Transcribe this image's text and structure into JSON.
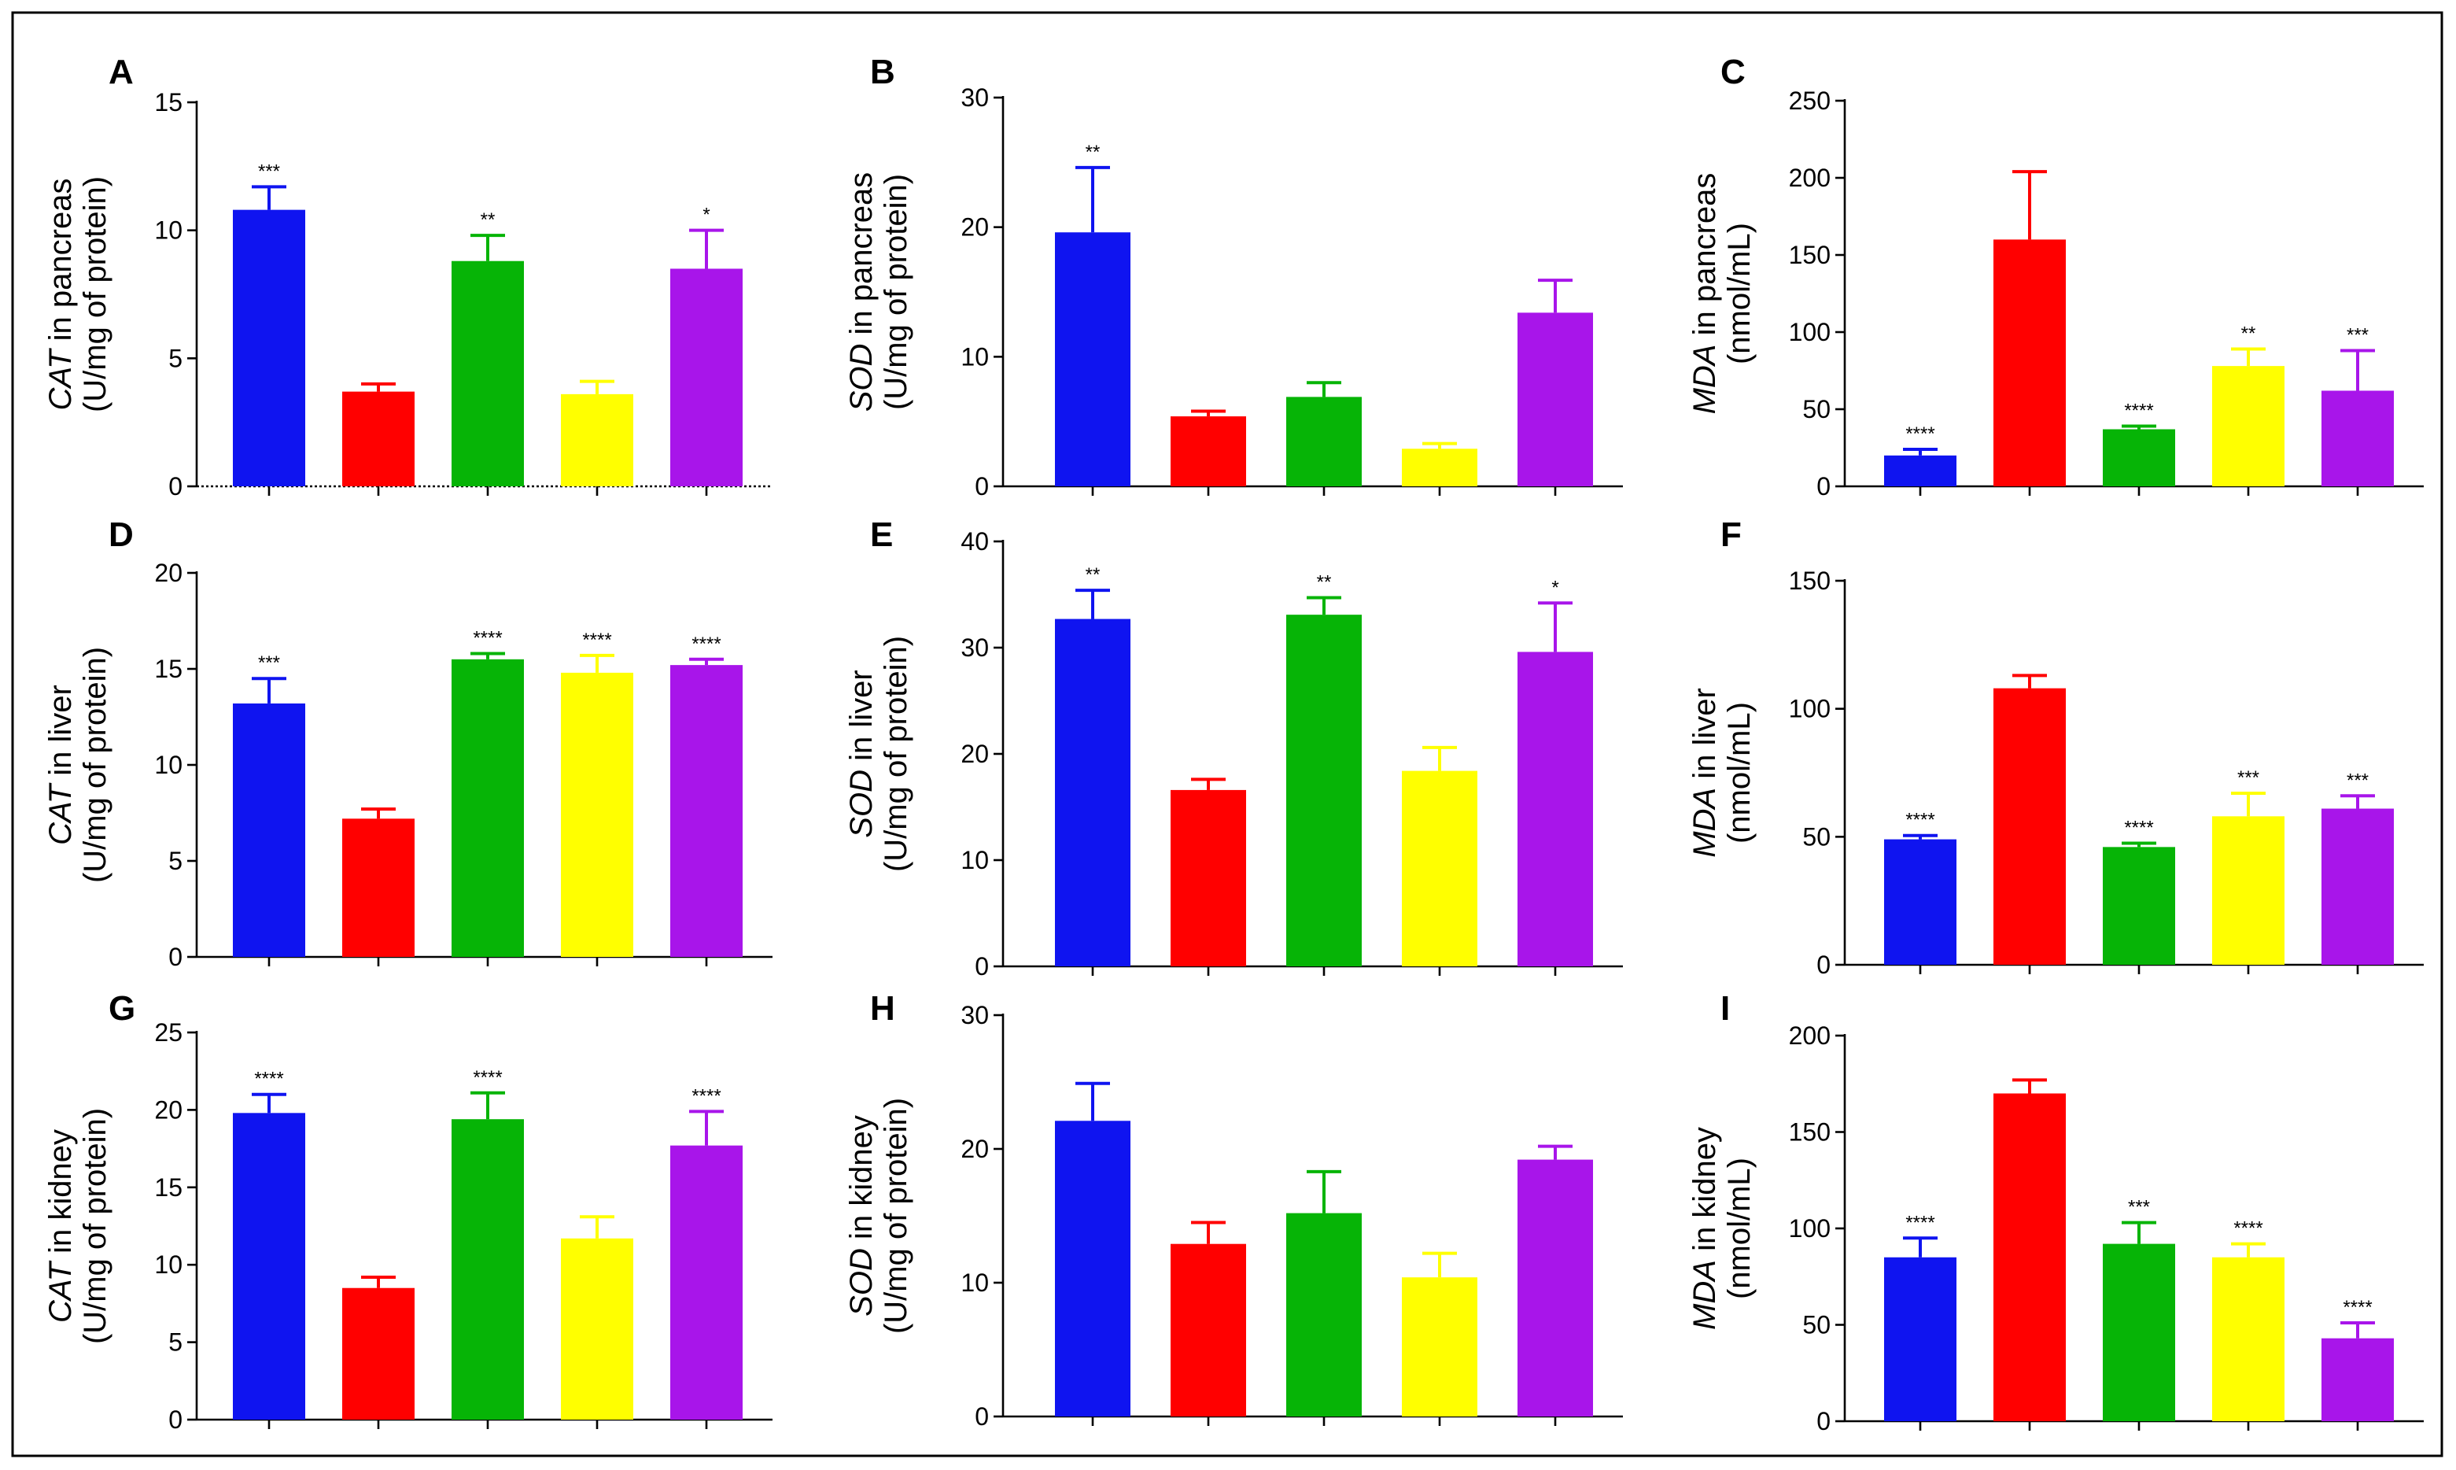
{
  "colors": {
    "groups": [
      "#0f14f0",
      "#ff0000",
      "#06b406",
      "#ffff00",
      "#a815ea"
    ],
    "frame": "#000000"
  },
  "chart_data": [
    {
      "id": "A",
      "type": "bar",
      "letter": "A",
      "ylabel_gene": "CAT",
      "ylabel_rest": " in pancreas",
      "ylabel_unit": "(U/mg of protein)",
      "ylim": [
        0,
        15
      ],
      "yticks": [
        0,
        5,
        10,
        15
      ],
      "ytick_labels": [
        "0",
        "5",
        "10",
        "15"
      ],
      "values": [
        10.8,
        3.7,
        8.8,
        3.6,
        8.5
      ],
      "errors": [
        0.9,
        0.3,
        1.0,
        0.5,
        1.5
      ],
      "sig": [
        "***",
        "",
        "**",
        "",
        "*"
      ],
      "baseline_dotted": true
    },
    {
      "id": "B",
      "type": "bar",
      "letter": "B",
      "ylabel_gene": "SOD",
      "ylabel_rest": " in pancreas",
      "ylabel_unit": "(U/mg of protein)",
      "ylim": [
        0,
        30
      ],
      "yticks": [
        0,
        10,
        20,
        30
      ],
      "ytick_labels": [
        "0",
        "10",
        "20",
        "30"
      ],
      "values": [
        19.6,
        5.4,
        6.9,
        2.9,
        13.4
      ],
      "errors": [
        5.0,
        0.4,
        1.1,
        0.4,
        2.5
      ],
      "sig": [
        "**",
        "",
        "",
        "",
        ""
      ]
    },
    {
      "id": "C",
      "type": "bar",
      "letter": "C",
      "ylabel_gene": "MDA",
      "ylabel_rest": " in pancreas",
      "ylabel_unit": "(nmol/mL)",
      "ylim": [
        0,
        250
      ],
      "yticks": [
        0,
        50,
        100,
        150,
        200,
        250
      ],
      "ytick_labels": [
        "0",
        "50",
        "100",
        "150",
        "200",
        "250"
      ],
      "values": [
        20,
        160,
        37,
        78,
        62
      ],
      "errors": [
        4,
        44,
        2,
        11,
        26
      ],
      "sig": [
        "****",
        "",
        "****",
        "**",
        "***"
      ]
    },
    {
      "id": "D",
      "type": "bar",
      "letter": "D",
      "ylabel_gene": "CAT",
      "ylabel_rest": " in liver",
      "ylabel_unit": "(U/mg of protein)",
      "ylim": [
        0,
        20
      ],
      "yticks": [
        0,
        5,
        10,
        15,
        20
      ],
      "ytick_labels": [
        "0",
        "5",
        "10",
        "15",
        "20"
      ],
      "values": [
        13.2,
        7.2,
        15.5,
        14.8,
        15.2
      ],
      "errors": [
        1.3,
        0.5,
        0.3,
        0.9,
        0.3
      ],
      "sig": [
        "***",
        "",
        "****",
        "****",
        "****"
      ]
    },
    {
      "id": "E",
      "type": "bar",
      "letter": "E",
      "ylabel_gene": "SOD",
      "ylabel_rest": " in liver",
      "ylabel_unit": "(U/mg of protein)",
      "ylim": [
        0,
        40
      ],
      "yticks": [
        0,
        10,
        20,
        30,
        40
      ],
      "ytick_labels": [
        "0",
        "10",
        "20",
        "30",
        "40"
      ],
      "values": [
        32.7,
        16.6,
        33.1,
        18.4,
        29.6
      ],
      "errors": [
        2.7,
        1.0,
        1.6,
        2.2,
        4.6
      ],
      "sig": [
        "**",
        "",
        "**",
        "",
        "*"
      ]
    },
    {
      "id": "F",
      "type": "bar",
      "letter": "F",
      "ylabel_gene": "MDA",
      "ylabel_rest": " in liver",
      "ylabel_unit": "(nmol/mL)",
      "ylim": [
        0,
        150
      ],
      "yticks": [
        0,
        50,
        100,
        150
      ],
      "ytick_labels": [
        "0",
        "50",
        "100",
        "150"
      ],
      "values": [
        49,
        108,
        46,
        58,
        61
      ],
      "errors": [
        1.5,
        5,
        1.5,
        9,
        5
      ],
      "sig": [
        "****",
        "",
        "****",
        "***",
        "***"
      ]
    },
    {
      "id": "G",
      "type": "bar",
      "letter": "G",
      "ylabel_gene": "CAT",
      "ylabel_rest": " in kidney",
      "ylabel_unit": "(U/mg of protein)",
      "ylim": [
        0,
        25
      ],
      "yticks": [
        0,
        5,
        10,
        15,
        20,
        25
      ],
      "ytick_labels": [
        "0",
        "5",
        "10",
        "15",
        "20",
        "25"
      ],
      "values": [
        19.8,
        8.5,
        19.4,
        11.7,
        17.7
      ],
      "errors": [
        1.2,
        0.7,
        1.7,
        1.4,
        2.2
      ],
      "sig": [
        "****",
        "",
        "****",
        "",
        "****"
      ]
    },
    {
      "id": "H",
      "type": "bar",
      "letter": "H",
      "ylabel_gene": "SOD",
      "ylabel_rest": " in kidney",
      "ylabel_unit": "(U/mg of protein)",
      "ylim": [
        0,
        30
      ],
      "yticks": [
        0,
        10,
        20,
        30
      ],
      "ytick_labels": [
        "0",
        "10",
        "20",
        "30"
      ],
      "values": [
        22.1,
        12.9,
        15.2,
        10.4,
        19.2
      ],
      "errors": [
        2.8,
        1.6,
        3.1,
        1.8,
        1.0
      ],
      "sig": [
        "",
        "",
        "",
        "",
        ""
      ]
    },
    {
      "id": "I",
      "type": "bar",
      "letter": "I",
      "ylabel_gene": "MDA",
      "ylabel_rest": " in kidney",
      "ylabel_unit": "(nmol/mL)",
      "ylim": [
        0,
        200
      ],
      "yticks": [
        0,
        50,
        100,
        150,
        200
      ],
      "ytick_labels": [
        "0",
        "50",
        "100",
        "150",
        "200"
      ],
      "values": [
        85,
        170,
        92,
        85,
        43
      ],
      "errors": [
        10,
        7,
        11,
        7,
        8
      ],
      "sig": [
        "****",
        "",
        "***",
        "****",
        "****"
      ]
    }
  ]
}
